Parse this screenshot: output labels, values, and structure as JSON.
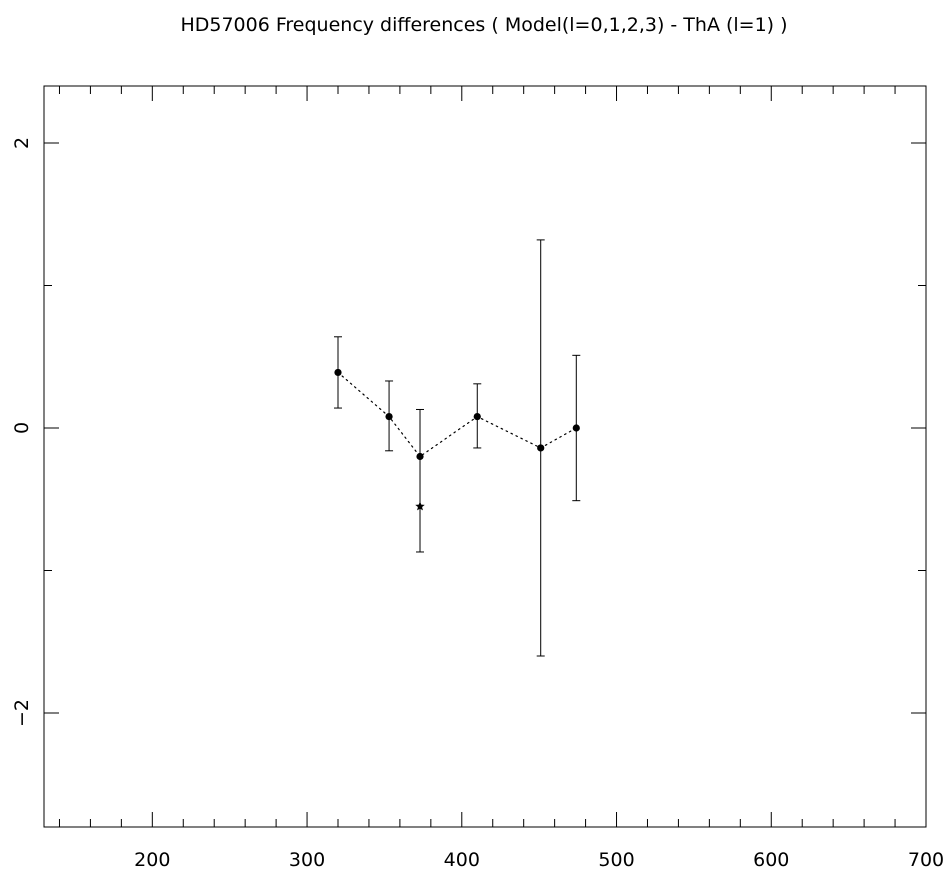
{
  "chart_data": {
    "type": "scatter",
    "title": "HD57006  Frequency differences ( Model(l=0,1,2,3) - ThA (l=1) )",
    "xlabel": "",
    "ylabel": "",
    "xlim": [
      130,
      700
    ],
    "ylim": [
      -2.8,
      2.4
    ],
    "x_ticks": [
      200,
      300,
      400,
      500,
      600,
      700
    ],
    "x_tick_labels": [
      "200",
      "300",
      "400",
      "500",
      "600",
      "700"
    ],
    "x_minor_step": 20,
    "y_ticks": [
      -2,
      0,
      2
    ],
    "y_tick_labels": [
      "−2",
      "0",
      "2"
    ],
    "y_minor_step": 1,
    "grid": false,
    "series": [
      {
        "marker": "dot",
        "line": "dotted",
        "points": [
          {
            "x": 320,
            "y": 0.39,
            "err_low": 0.25,
            "err_high": 0.25
          },
          {
            "x": 353,
            "y": 0.08,
            "err_low": 0.24,
            "err_high": 0.25
          },
          {
            "x": 373,
            "y": -0.2,
            "err_low": 0.67,
            "err_high": 0.33
          },
          {
            "x": 410,
            "y": 0.08,
            "err_low": 0.22,
            "err_high": 0.23
          },
          {
            "x": 451,
            "y": -0.14,
            "err_low": 1.46,
            "err_high": 1.46
          },
          {
            "x": 474,
            "y": 0.0,
            "err_low": 0.51,
            "err_high": 0.51
          }
        ]
      },
      {
        "marker": "star",
        "line": "none",
        "points": [
          {
            "x": 373,
            "y": -0.55
          }
        ]
      }
    ]
  }
}
